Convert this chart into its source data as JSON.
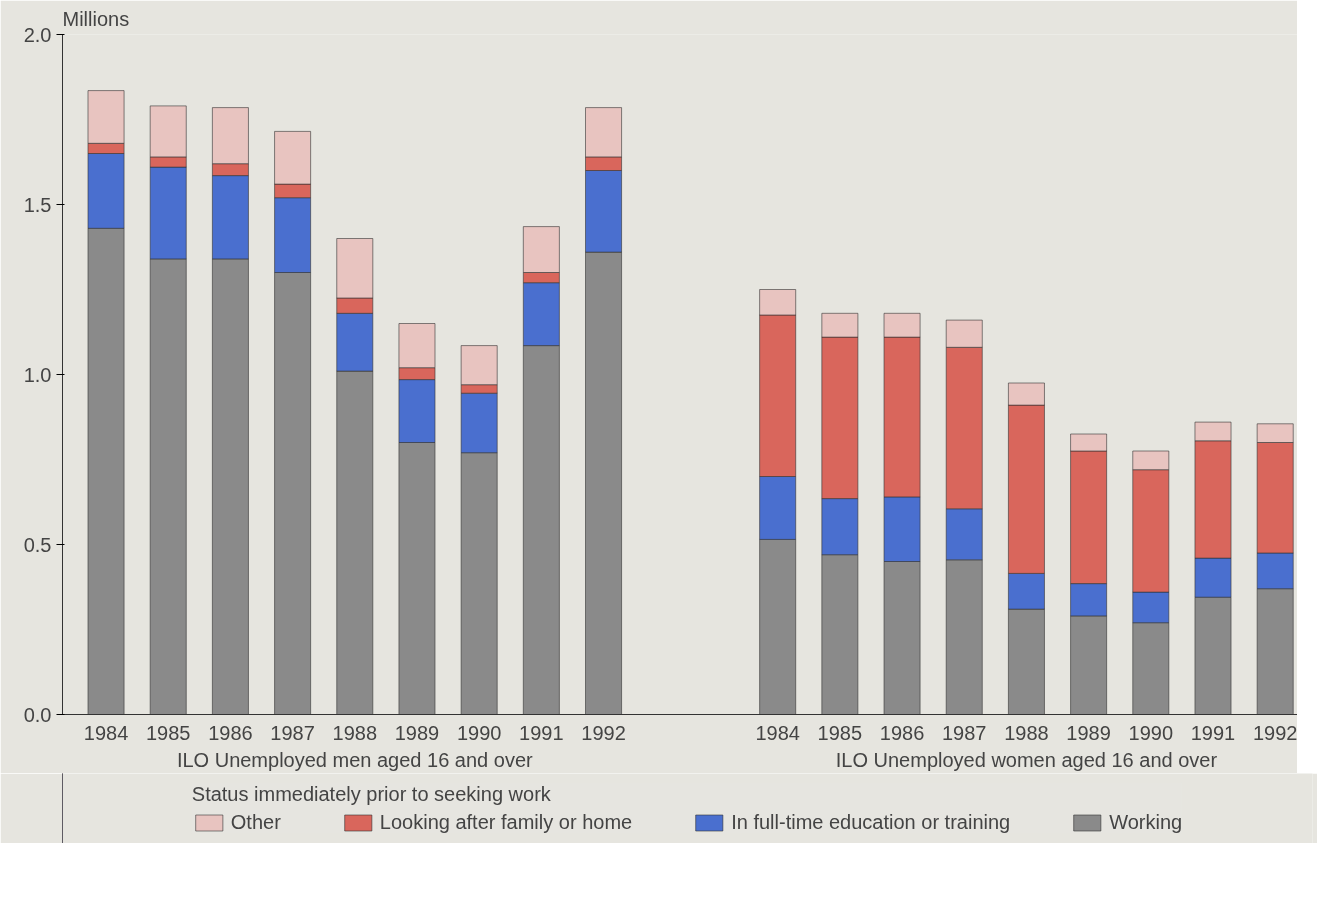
{
  "chart_data": [
    {
      "type": "bar",
      "stacked": true,
      "ylabel": "Millions",
      "xlabel": "ILO Unemployed men aged 16 and over",
      "legend_title": "Status immediately prior to seeking work",
      "legend": "bottom",
      "grid": false,
      "categories": [
        "1984",
        "1985",
        "1986",
        "1987",
        "1988",
        "1989",
        "1990",
        "1991",
        "1992"
      ],
      "ylim": [
        0,
        2.0
      ],
      "yticks": [
        {
          "value": 0,
          "label": "0.0"
        },
        {
          "value": 0.5,
          "label": "0.5"
        },
        {
          "value": 1.0,
          "label": "1.0"
        },
        {
          "value": 1.5,
          "label": "1.5"
        },
        {
          "value": 2.0,
          "label": "2.0"
        }
      ],
      "series": [
        {
          "name": "Working",
          "color": "#8a8a8a",
          "values": [
            1.43,
            1.34,
            1.34,
            1.3,
            1.01,
            0.8,
            0.77,
            1.085,
            1.36
          ]
        },
        {
          "name": "In full-time education or training",
          "color": "#4a6fcf",
          "values": [
            0.22,
            0.27,
            0.245,
            0.22,
            0.17,
            0.185,
            0.175,
            0.185,
            0.24
          ]
        },
        {
          "name": "Looking after family or home",
          "color": "#d9665c",
          "values": [
            0.03,
            0.03,
            0.035,
            0.04,
            0.045,
            0.035,
            0.025,
            0.03,
            0.04
          ]
        },
        {
          "name": "Other",
          "color": "#e8c4c0",
          "values": [
            0.155,
            0.15,
            0.165,
            0.155,
            0.175,
            0.13,
            0.115,
            0.135,
            0.145
          ]
        }
      ]
    },
    {
      "type": "bar",
      "stacked": true,
      "xlabel": "ILO Unemployed women aged 16 and over",
      "tick_labels": "x",
      "grid": false,
      "categories": [
        "1984",
        "1985",
        "1986",
        "1987",
        "1988",
        "1989",
        "1990",
        "1991",
        "1992"
      ],
      "ylim": [
        0,
        2.0
      ],
      "series": [
        {
          "color": "#8a8a8a",
          "values": [
            0.515,
            0.47,
            0.45,
            0.455,
            0.31,
            0.29,
            0.27,
            0.345,
            0.37
          ]
        },
        {
          "color": "#4a6fcf",
          "values": [
            0.185,
            0.165,
            0.19,
            0.15,
            0.105,
            0.095,
            0.09,
            0.115,
            0.105
          ]
        },
        {
          "color": "#d9665c",
          "values": [
            0.475,
            0.475,
            0.47,
            0.475,
            0.495,
            0.39,
            0.36,
            0.345,
            0.325
          ]
        },
        {
          "color": "#e8c4c0",
          "values": [
            0.075,
            0.07,
            0.07,
            0.08,
            0.065,
            0.05,
            0.055,
            0.055,
            0.055
          ]
        }
      ]
    }
  ]
}
